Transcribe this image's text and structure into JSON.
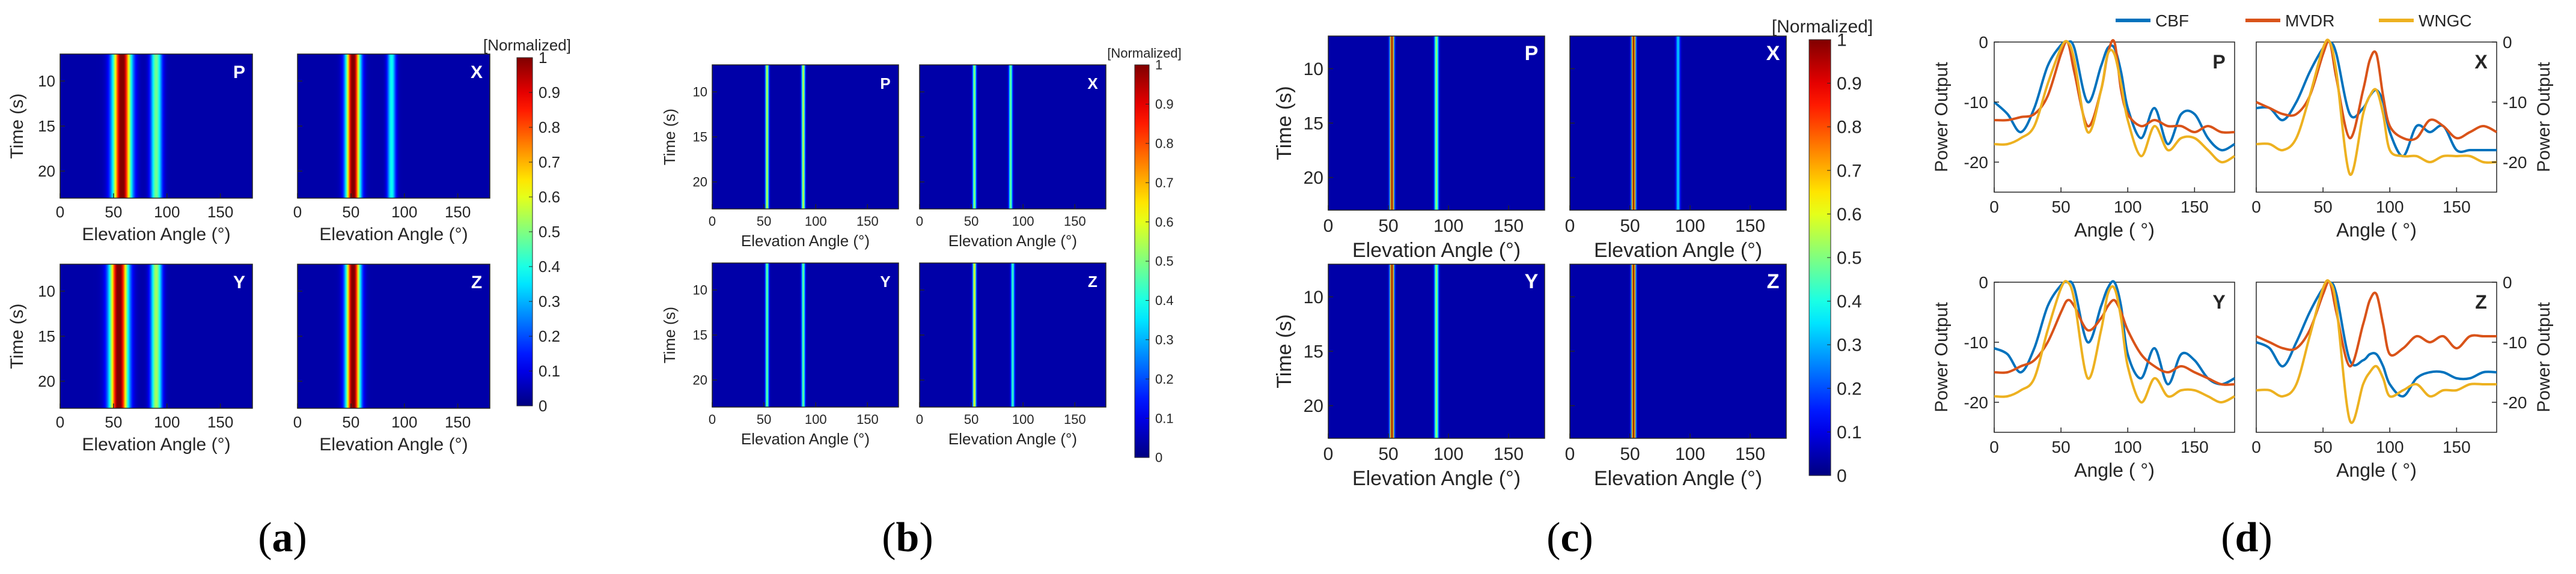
{
  "figure_labels": [
    "(a)",
    "(b)",
    "(c)",
    "(d)"
  ],
  "colors": {
    "CBF": "#0072BD",
    "MVDR": "#D95319",
    "WNGC": "#EDB120",
    "axis": "#262626"
  },
  "chart_data": [
    {
      "type": "heatmap",
      "panel": "a",
      "colorbar_title": "[Normalized]",
      "colorbar_ticks": [
        "0",
        "0.1",
        "0.2",
        "0.3",
        "0.4",
        "0.5",
        "0.6",
        "0.7",
        "0.8",
        "0.9",
        "1"
      ],
      "xlabel": "Elevation Angle (°)",
      "ylabel": "Time (s)",
      "xlim": [
        0,
        180
      ],
      "ylim": [
        7,
        23
      ],
      "xticks": [
        0,
        50,
        100,
        150
      ],
      "yticks": [
        10,
        15,
        20
      ],
      "subplots": [
        {
          "name": "P",
          "peaks": [
            {
              "angle": 58,
              "level": 1.0,
              "width": 13
            },
            {
              "angle": 90,
              "level": 0.45,
              "width": 8
            }
          ]
        },
        {
          "name": "X",
          "peaks": [
            {
              "angle": 52,
              "level": 1.0,
              "width": 10
            },
            {
              "angle": 88,
              "level": 0.35,
              "width": 6
            }
          ]
        },
        {
          "name": "Y",
          "peaks": [
            {
              "angle": 55,
              "level": 1.0,
              "width": 13
            },
            {
              "angle": 90,
              "level": 0.5,
              "width": 8
            }
          ]
        },
        {
          "name": "Z",
          "peaks": [
            {
              "angle": 52,
              "level": 1.0,
              "width": 10
            }
          ]
        }
      ]
    },
    {
      "type": "heatmap",
      "panel": "b",
      "colorbar_title": "[Normalized]",
      "colorbar_ticks": [
        "0",
        "0.1",
        "0.2",
        "0.3",
        "0.4",
        "0.5",
        "0.6",
        "0.7",
        "0.8",
        "0.9",
        "1"
      ],
      "xlabel": "Elevation Angle (°)",
      "ylabel": "Time (s)",
      "xlim": [
        0,
        180
      ],
      "ylim": [
        7,
        23
      ],
      "xticks": [
        0,
        50,
        100,
        150
      ],
      "yticks": [
        10,
        15,
        20
      ],
      "subplots": [
        {
          "name": "P",
          "peaks": [
            {
              "angle": 53,
              "level": 0.55,
              "width": 2.5
            },
            {
              "angle": 88,
              "level": 0.55,
              "width": 2.5
            }
          ]
        },
        {
          "name": "X",
          "peaks": [
            {
              "angle": 53,
              "level": 0.5,
              "width": 2.5
            },
            {
              "angle": 88,
              "level": 0.45,
              "width": 2.5
            }
          ]
        },
        {
          "name": "Y",
          "peaks": [
            {
              "angle": 53,
              "level": 0.45,
              "width": 2.5
            },
            {
              "angle": 88,
              "level": 0.45,
              "width": 2.5
            }
          ]
        },
        {
          "name": "Z",
          "peaks": [
            {
              "angle": 53,
              "level": 0.6,
              "width": 2.5
            },
            {
              "angle": 90,
              "level": 0.4,
              "width": 2.5
            }
          ]
        }
      ]
    },
    {
      "type": "heatmap",
      "panel": "c",
      "colorbar_title": "[Normalized]",
      "colorbar_ticks": [
        "0",
        "0.1",
        "0.2",
        "0.3",
        "0.4",
        "0.5",
        "0.6",
        "0.7",
        "0.8",
        "0.9",
        "1"
      ],
      "xlabel": "Elevation Angle (°)",
      "ylabel": "Time (s)",
      "xlim": [
        0,
        180
      ],
      "ylim": [
        7,
        23
      ],
      "xticks": [
        0,
        50,
        100,
        150
      ],
      "yticks": [
        10,
        15,
        20
      ],
      "subplots": [
        {
          "name": "P",
          "peaks": [
            {
              "angle": 53,
              "level": 0.95,
              "width": 2.5
            },
            {
              "angle": 90,
              "level": 0.5,
              "width": 2.5
            }
          ]
        },
        {
          "name": "X",
          "peaks": [
            {
              "angle": 53,
              "level": 0.95,
              "width": 2.5
            },
            {
              "angle": 90,
              "level": 0.3,
              "width": 2.5
            }
          ]
        },
        {
          "name": "Y",
          "peaks": [
            {
              "angle": 53,
              "level": 0.95,
              "width": 2.5
            },
            {
              "angle": 90,
              "level": 0.5,
              "width": 2.5
            }
          ]
        },
        {
          "name": "Z",
          "peaks": [
            {
              "angle": 53,
              "level": 0.95,
              "width": 2.5
            }
          ]
        }
      ]
    },
    {
      "type": "line",
      "panel": "d",
      "legend": [
        "CBF",
        "MVDR",
        "WNGC"
      ],
      "legend_position": "top",
      "xlabel": "Angle ( °)",
      "ylabel": "Power Output",
      "xlim": [
        0,
        180
      ],
      "ylim": [
        -25,
        0
      ],
      "xticks": [
        0,
        50,
        100,
        150
      ],
      "yticks": [
        0,
        -10,
        -20
      ],
      "x": [
        0,
        10,
        20,
        30,
        40,
        50,
        55,
        60,
        70,
        80,
        85,
        90,
        95,
        100,
        110,
        120,
        130,
        140,
        150,
        160,
        170,
        180
      ],
      "subplots": [
        {
          "name": "P",
          "y_axis": "left",
          "series": [
            {
              "name": "CBF",
              "values": [
                -10,
                -12,
                -15,
                -11,
                -4,
                -0.5,
                0,
                -1,
                -10,
                -4,
                -1,
                -1,
                -5,
                -11,
                -16,
                -11,
                -17,
                -12,
                -12,
                -16,
                -18,
                -17
              ]
            },
            {
              "name": "MVDR",
              "values": [
                -13,
                -13,
                -12.5,
                -12,
                -9,
                -2,
                0,
                -5,
                -14,
                -8,
                -2,
                0,
                -8,
                -12,
                -14,
                -13,
                -14,
                -14,
                -15,
                -14,
                -15,
                -15
              ]
            },
            {
              "name": "WNGC",
              "values": [
                -17,
                -17,
                -16,
                -14,
                -7,
                -1,
                0,
                -3,
                -15,
                -8,
                -2,
                -2,
                -7,
                -13,
                -19,
                -14,
                -18,
                -16,
                -16,
                -18,
                -20,
                -19
              ]
            }
          ]
        },
        {
          "name": "X",
          "y_axis": "right",
          "series": [
            {
              "name": "CBF",
              "values": [
                -11,
                -11,
                -13,
                -10,
                -5,
                -1,
                0,
                -2,
                -12,
                -11,
                -9,
                -8,
                -10,
                -15,
                -19,
                -14,
                -15,
                -14,
                -18,
                -18,
                -18,
                -18
              ]
            },
            {
              "name": "MVDR",
              "values": [
                -10,
                -11,
                -12,
                -12,
                -9,
                -2,
                0,
                -6,
                -16,
                -8,
                -3,
                -2,
                -9,
                -14,
                -16,
                -16,
                -13,
                -14,
                -16,
                -15,
                -14,
                -15
              ]
            },
            {
              "name": "WNGC",
              "values": [
                -17,
                -17,
                -18,
                -16,
                -9,
                -1,
                0,
                -5,
                -22,
                -12,
                -9,
                -8,
                -12,
                -18,
                -19,
                -19,
                -20,
                -19,
                -19,
                -19,
                -20,
                -20
              ]
            }
          ]
        },
        {
          "name": "Y",
          "y_axis": "left",
          "series": [
            {
              "name": "CBF",
              "values": [
                -11,
                -12,
                -15,
                -11,
                -4,
                -0.5,
                0,
                -1,
                -10,
                -4,
                -1,
                0,
                -4,
                -12,
                -16,
                -11,
                -17,
                -12,
                -13,
                -16,
                -17,
                -16
              ]
            },
            {
              "name": "MVDR",
              "values": [
                -15,
                -15,
                -14,
                -13,
                -10,
                -5,
                -3,
                -4,
                -8,
                -6,
                -4,
                -3,
                -5,
                -8,
                -12,
                -14,
                -15,
                -14,
                -15,
                -16,
                -17,
                -17
              ]
            },
            {
              "name": "WNGC",
              "values": [
                -19,
                -19,
                -18,
                -16,
                -8,
                -1,
                0,
                -3,
                -16,
                -8,
                -2,
                -1,
                -6,
                -14,
                -20,
                -16,
                -19,
                -18,
                -18,
                -19,
                -20,
                -19
              ]
            }
          ]
        },
        {
          "name": "Z",
          "y_axis": "right",
          "series": [
            {
              "name": "CBF",
              "values": [
                -10,
                -11,
                -14,
                -10,
                -5,
                -1,
                0,
                -2,
                -13,
                -13,
                -12,
                -12,
                -14,
                -17,
                -19,
                -16,
                -15,
                -15,
                -16,
                -16,
                -15,
                -15
              ]
            },
            {
              "name": "MVDR",
              "values": [
                -9,
                -10,
                -11,
                -11,
                -8,
                -2,
                0,
                -5,
                -14,
                -7,
                -3,
                -2,
                -7,
                -12,
                -11,
                -9,
                -10,
                -9,
                -11,
                -9,
                -9,
                -9
              ]
            },
            {
              "name": "WNGC",
              "values": [
                -18,
                -18,
                -19,
                -17,
                -9,
                -1,
                0,
                -4,
                -23,
                -17,
                -15,
                -14,
                -16,
                -19,
                -18,
                -17,
                -19,
                -18,
                -18,
                -17,
                -17,
                -17
              ]
            }
          ]
        }
      ]
    }
  ]
}
